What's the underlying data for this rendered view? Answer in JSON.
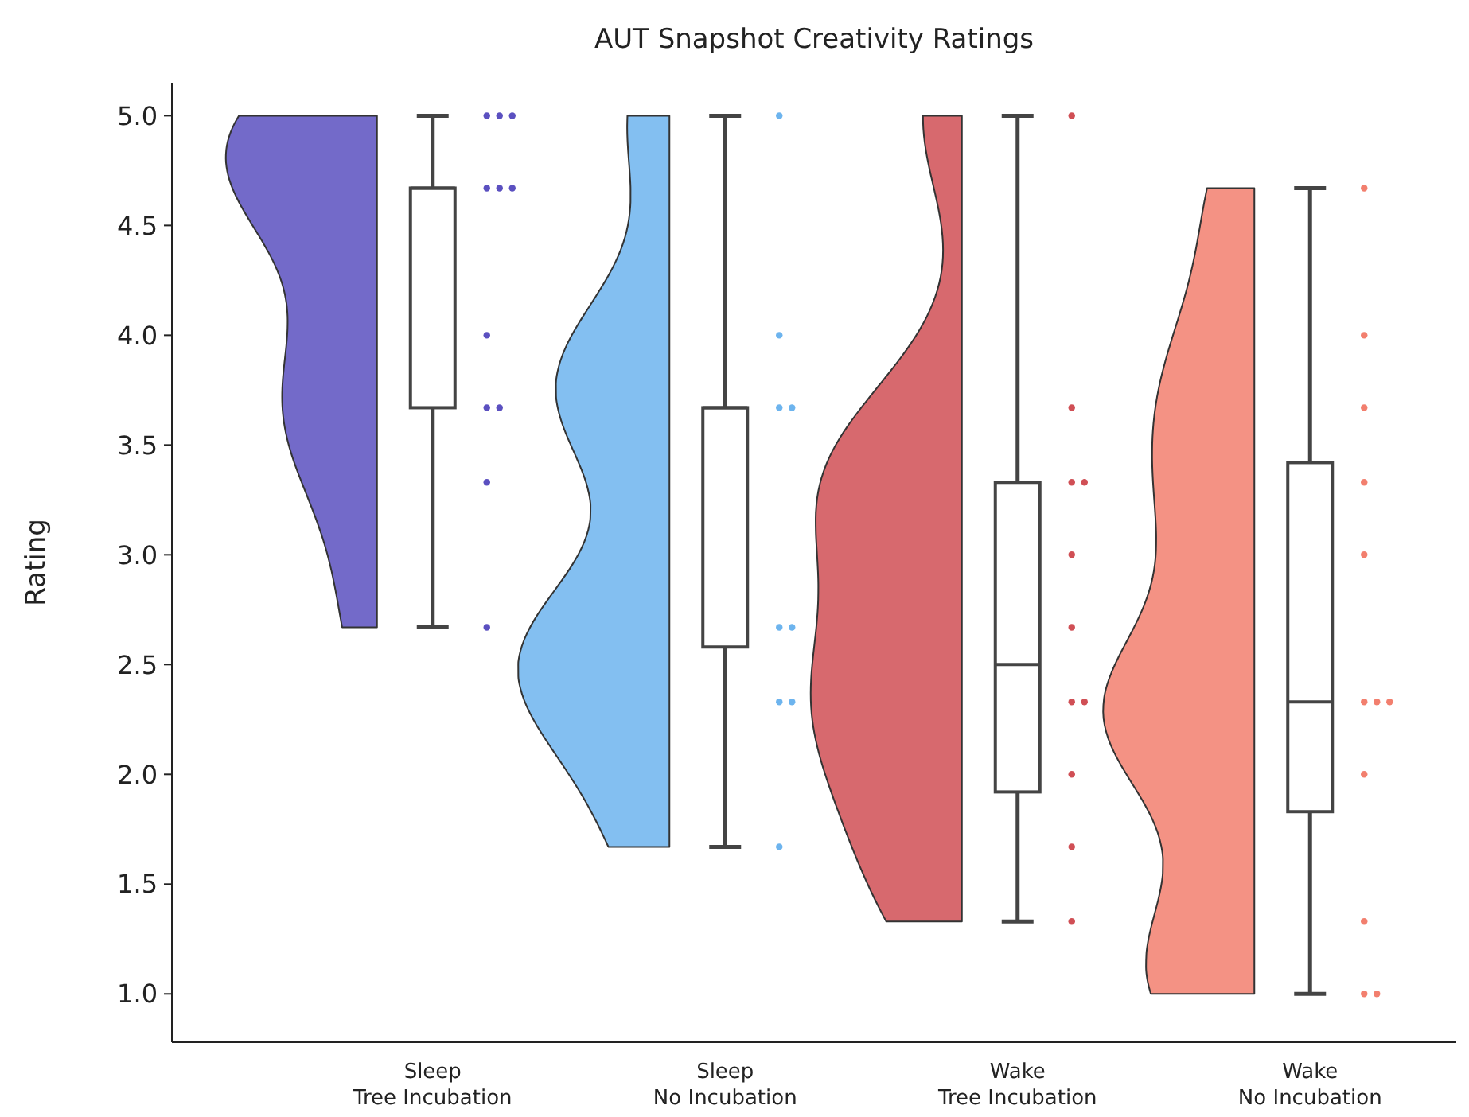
{
  "chart_data": {
    "type": "box",
    "title": "AUT Snapshot Creativity Ratings",
    "ylabel": "Rating",
    "categories": [
      "Sleep\nTree Incubation",
      "Sleep\nNo Incubation",
      "Wake\nTree Incubation",
      "Wake\nNo Incubation"
    ],
    "boxes": [
      {
        "low": 2.67,
        "q1": 3.67,
        "median": 4.67,
        "q3": 4.67,
        "high": 5.0
      },
      {
        "low": 1.67,
        "q1": 2.58,
        "median": 3.67,
        "q3": 3.67,
        "high": 5.0
      },
      {
        "low": 1.33,
        "q1": 1.92,
        "median": 2.5,
        "q3": 3.33,
        "high": 5.0
      },
      {
        "low": 1.0,
        "q1": 1.83,
        "median": 2.33,
        "q3": 3.42,
        "high": 4.67
      }
    ],
    "series": [
      {
        "type": "scatter",
        "color": "#5b50c0",
        "x": [
          "Sleep\nTree Incubation",
          "Sleep\nTree Incubation",
          "Sleep\nTree Incubation",
          "Sleep\nTree Incubation",
          "Sleep\nTree Incubation",
          "Sleep\nTree Incubation",
          "Sleep\nTree Incubation",
          "Sleep\nTree Incubation",
          "Sleep\nTree Incubation",
          "Sleep\nTree Incubation",
          "Sleep\nTree Incubation"
        ],
        "values": [
          5.0,
          5.0,
          5.0,
          4.67,
          4.67,
          4.67,
          4.0,
          3.67,
          3.67,
          3.33,
          2.67
        ]
      },
      {
        "type": "scatter",
        "color": "#6db4ee",
        "x": [
          "Sleep\nNo Incubation",
          "Sleep\nNo Incubation",
          "Sleep\nNo Incubation",
          "Sleep\nNo Incubation",
          "Sleep\nNo Incubation",
          "Sleep\nNo Incubation",
          "Sleep\nNo Incubation",
          "Sleep\nNo Incubation",
          "Sleep\nNo Incubation"
        ],
        "values": [
          5.0,
          4.0,
          3.67,
          3.67,
          2.67,
          2.67,
          2.33,
          2.33,
          1.67
        ]
      },
      {
        "type": "scatter",
        "color": "#d04f55",
        "x": [
          "Wake\nTree Incubation",
          "Wake\nTree Incubation",
          "Wake\nTree Incubation",
          "Wake\nTree Incubation",
          "Wake\nTree Incubation",
          "Wake\nTree Incubation",
          "Wake\nTree Incubation",
          "Wake\nTree Incubation",
          "Wake\nTree Incubation",
          "Wake\nTree Incubation",
          "Wake\nTree Incubation"
        ],
        "values": [
          5.0,
          3.67,
          3.33,
          3.33,
          3.0,
          2.67,
          2.33,
          2.33,
          2.0,
          1.67,
          1.33
        ]
      },
      {
        "type": "scatter",
        "color": "#f27f6e",
        "x": [
          "Wake\nNo Incubation",
          "Wake\nNo Incubation",
          "Wake\nNo Incubation",
          "Wake\nNo Incubation",
          "Wake\nNo Incubation",
          "Wake\nNo Incubation",
          "Wake\nNo Incubation",
          "Wake\nNo Incubation",
          "Wake\nNo Incubation",
          "Wake\nNo Incubation",
          "Wake\nNo Incubation",
          "Wake\nNo Incubation"
        ],
        "values": [
          4.67,
          4.0,
          3.67,
          3.33,
          3.0,
          2.33,
          2.33,
          2.33,
          2.0,
          1.33,
          1.0,
          1.0
        ]
      }
    ],
    "ylim": [
      0.78,
      5.15
    ],
    "yticks": [
      {
        "value": 1.0,
        "label": "1.0"
      },
      {
        "value": 1.5,
        "label": "1.5"
      },
      {
        "value": 2.0,
        "label": "2.0"
      },
      {
        "value": 2.5,
        "label": "2.5"
      },
      {
        "value": 3.0,
        "label": "3.0"
      },
      {
        "value": 3.5,
        "label": "3.5"
      },
      {
        "value": 4.0,
        "label": "4.0"
      },
      {
        "value": 4.5,
        "label": "4.5"
      },
      {
        "value": 5.0,
        "label": "5.0"
      }
    ],
    "grid": false,
    "marker": "circle"
  }
}
